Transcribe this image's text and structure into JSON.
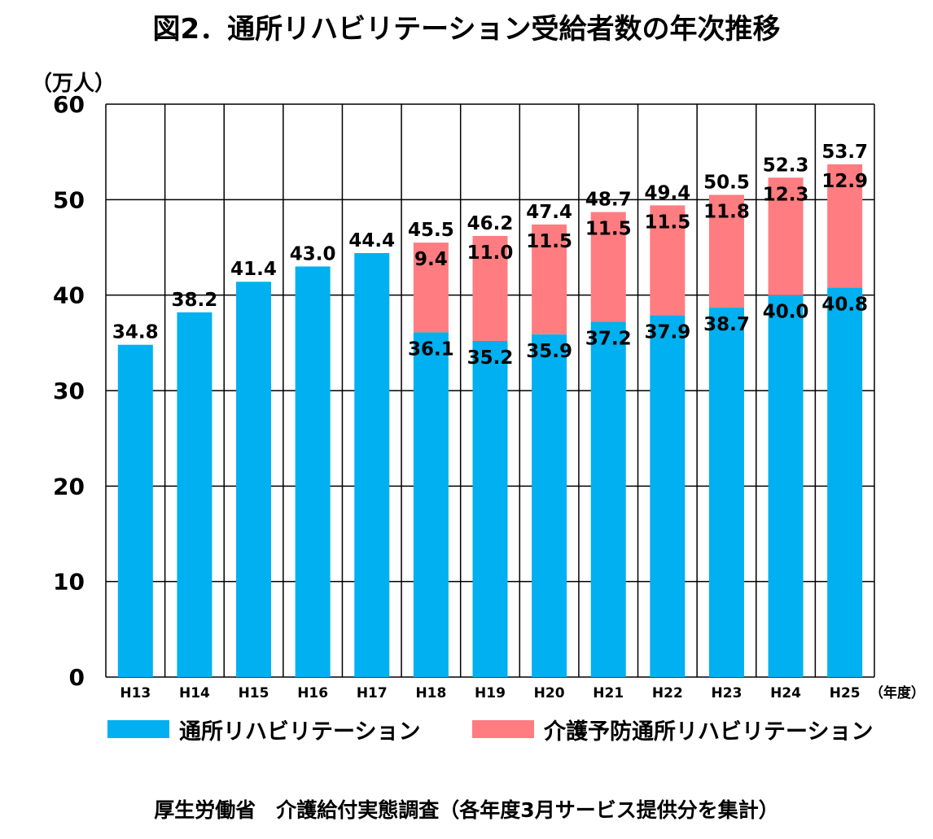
{
  "chart_data": {
    "type": "bar",
    "stacked": true,
    "title": "図2．通所リハビリテーション受給者数の年次推移",
    "ylabel": "（万人）",
    "xunit": "（年度）",
    "ylim": [
      0,
      60
    ],
    "yticks": [
      0,
      10,
      20,
      30,
      40,
      50,
      60
    ],
    "grid": true,
    "legend_position": "bottom",
    "categories": [
      "H13",
      "H14",
      "H15",
      "H16",
      "H17",
      "H18",
      "H19",
      "H20",
      "H21",
      "H22",
      "H23",
      "H24",
      "H25"
    ],
    "series": [
      {
        "name": "通所リハビリテーション",
        "color": "#00B0F0",
        "values": [
          34.8,
          38.2,
          41.4,
          43.0,
          44.4,
          36.1,
          35.2,
          35.9,
          37.2,
          37.9,
          38.7,
          40.0,
          40.8
        ]
      },
      {
        "name": "介護予防通所リハビリテーション",
        "color": "#FF7C80",
        "values": [
          null,
          null,
          null,
          null,
          null,
          9.4,
          11.0,
          11.5,
          11.5,
          11.5,
          11.8,
          12.3,
          12.9
        ]
      }
    ],
    "totals": [
      34.8,
      38.2,
      41.4,
      43.0,
      44.4,
      45.5,
      46.2,
      47.4,
      48.7,
      49.4,
      50.5,
      52.3,
      53.7
    ]
  },
  "source": "厚生労働省　介護給付実態調査（各年度3月サービス提供分を集計）"
}
